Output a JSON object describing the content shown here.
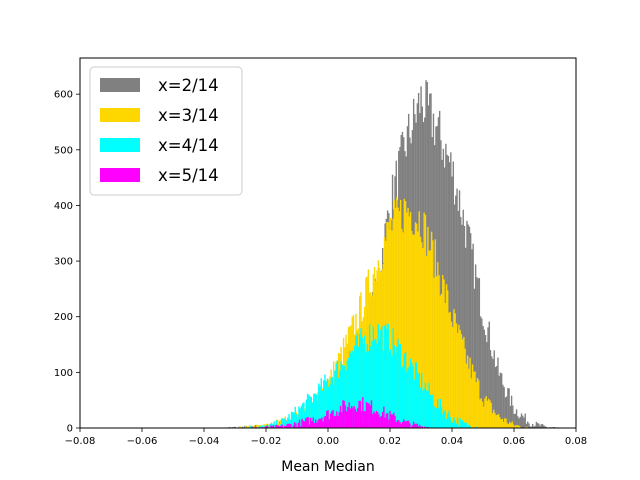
{
  "chart_data": {
    "type": "histogram",
    "title": "",
    "xlabel": "Mean Median",
    "ylabel": "",
    "xlim": [
      -0.08,
      0.08
    ],
    "ylim": [
      0,
      665
    ],
    "x_ticks": [
      "−0.08",
      "−0.06",
      "−0.04",
      "−0.02",
      "0.00",
      "0.02",
      "0.04",
      "0.06",
      "0.08"
    ],
    "y_ticks": [
      "0",
      "100",
      "200",
      "300",
      "400",
      "500",
      "600"
    ],
    "grid": false,
    "legend_position": "top-left",
    "series": [
      {
        "name": "x=2/14",
        "color": "#808080",
        "points": [
          [
            -0.035,
            0
          ],
          [
            -0.02,
            3
          ],
          [
            -0.01,
            12
          ],
          [
            0.0,
            45
          ],
          [
            0.005,
            85
          ],
          [
            0.01,
            135
          ],
          [
            0.015,
            230
          ],
          [
            0.02,
            400
          ],
          [
            0.025,
            510
          ],
          [
            0.03,
            590
          ],
          [
            0.035,
            540
          ],
          [
            0.04,
            465
          ],
          [
            0.045,
            345
          ],
          [
            0.05,
            210
          ],
          [
            0.055,
            100
          ],
          [
            0.06,
            35
          ],
          [
            0.065,
            10
          ],
          [
            0.07,
            2
          ],
          [
            0.075,
            0
          ]
        ]
      },
      {
        "name": "x=3/14",
        "color": "#FFD700",
        "points": [
          [
            -0.03,
            0
          ],
          [
            -0.02,
            4
          ],
          [
            -0.01,
            20
          ],
          [
            -0.005,
            45
          ],
          [
            0.0,
            80
          ],
          [
            0.005,
            140
          ],
          [
            0.01,
            205
          ],
          [
            0.015,
            285
          ],
          [
            0.02,
            360
          ],
          [
            0.025,
            395
          ],
          [
            0.03,
            375
          ],
          [
            0.035,
            295
          ],
          [
            0.04,
            200
          ],
          [
            0.045,
            120
          ],
          [
            0.05,
            55
          ],
          [
            0.055,
            20
          ],
          [
            0.06,
            5
          ],
          [
            0.065,
            0
          ]
        ]
      },
      {
        "name": "x=4/14",
        "color": "#00FFFF",
        "points": [
          [
            -0.03,
            0
          ],
          [
            -0.02,
            3
          ],
          [
            -0.015,
            10
          ],
          [
            -0.01,
            30
          ],
          [
            -0.005,
            55
          ],
          [
            0.0,
            85
          ],
          [
            0.005,
            120
          ],
          [
            0.01,
            150
          ],
          [
            0.015,
            175
          ],
          [
            0.02,
            160
          ],
          [
            0.025,
            125
          ],
          [
            0.03,
            85
          ],
          [
            0.035,
            45
          ],
          [
            0.04,
            18
          ],
          [
            0.045,
            5
          ],
          [
            0.05,
            0
          ]
        ]
      },
      {
        "name": "x=5/14",
        "color": "#FF00FF",
        "points": [
          [
            -0.025,
            0
          ],
          [
            -0.015,
            3
          ],
          [
            -0.01,
            8
          ],
          [
            -0.005,
            15
          ],
          [
            0.0,
            25
          ],
          [
            0.005,
            38
          ],
          [
            0.01,
            45
          ],
          [
            0.015,
            36
          ],
          [
            0.02,
            22
          ],
          [
            0.025,
            10
          ],
          [
            0.03,
            3
          ],
          [
            0.035,
            0
          ]
        ]
      }
    ]
  }
}
